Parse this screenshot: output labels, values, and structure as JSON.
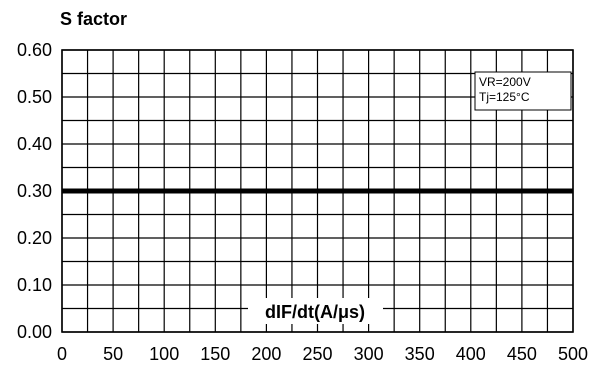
{
  "chart_data": {
    "type": "line",
    "title": "",
    "ylabel": "S factor",
    "xlabel": "dIF/dt(A/μs)",
    "xlim": [
      0,
      500
    ],
    "ylim": [
      0,
      0.6
    ],
    "grid": true,
    "x_ticks": [
      0,
      50,
      100,
      150,
      200,
      250,
      300,
      350,
      400,
      450,
      500
    ],
    "x_tick_labels": [
      "0",
      "50",
      "100",
      "150",
      "200",
      "250",
      "300",
      "350",
      "400",
      "450",
      "500"
    ],
    "y_ticks": [
      0,
      0.1,
      0.2,
      0.3,
      0.4,
      0.5,
      0.6
    ],
    "y_tick_labels": [
      "0.00",
      "0.10",
      "0.20",
      "0.30",
      "0.40",
      "0.50",
      "0.60"
    ],
    "x_minor_step": 25,
    "y_minor_step": 0.05,
    "series": [
      {
        "x": [
          0,
          500
        ],
        "y": [
          0.3,
          0.3
        ],
        "color": "#000000"
      }
    ],
    "annotations": [
      "VR=200V",
      "Tj=125°C"
    ]
  }
}
